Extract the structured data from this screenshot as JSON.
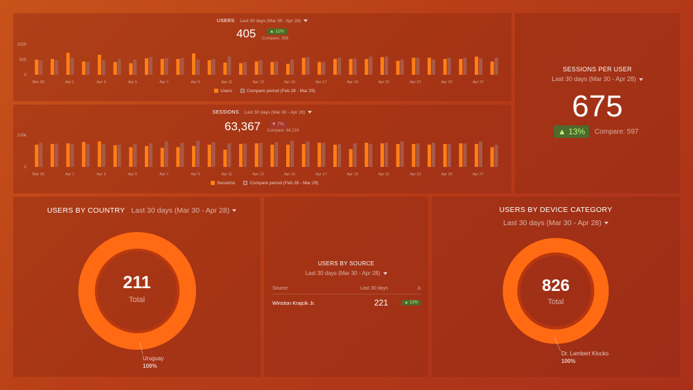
{
  "colors": {
    "primary": "#ff7f16",
    "compare": "#a75a48",
    "positive": "#b7f57a",
    "negative": "#ff9c8c",
    "donut": "#ff6a12"
  },
  "users_panel": {
    "title": "USERS",
    "range": "Last 30 days (Mar 30 - Apr 28)",
    "value": "405",
    "delta": "▲ 11%",
    "compare": "Compare: 366",
    "legend_primary": "Users",
    "legend_compare": "Compare period (Feb 28 - Mar 29)"
  },
  "sessions_panel": {
    "title": "SESSIONS",
    "range": "Last 30 days (Mar 30 - Apr 28)",
    "value": "63,367",
    "delta": "▼ 7%",
    "compare": "Compare: 68,219",
    "legend_primary": "Sessions",
    "legend_compare": "Compare period (Feb 28 - Mar 29)"
  },
  "sessions_per_user": {
    "title": "SESSIONS PER USER",
    "range": "Last 30 days (Mar 30 - Apr 28)",
    "value": "675",
    "delta": "▲ 13%",
    "compare": "Compare: 597"
  },
  "users_by_country": {
    "title": "USERS BY COUNTRY",
    "range": "Last 30 days (Mar 30 - Apr 28)",
    "total": "211",
    "total_label": "Total",
    "segment": "Uruguay",
    "segment_pct": "100%"
  },
  "users_by_source": {
    "title": "USERS BY SOURCE",
    "range": "Last 30 days (Mar 30 - Apr 28)",
    "col_source": "Source",
    "col_last": "Last 30 days",
    "col_delta": "Δ",
    "rows": [
      {
        "source": "Winston Krajcik Jr.",
        "value": "221",
        "delta": "▲ 12%"
      }
    ]
  },
  "users_by_device": {
    "title": "USERS BY DEVICE CATEGORY",
    "range": "Last 30 days (Mar 30 - Apr 28)",
    "total": "826",
    "total_label": "Total",
    "segment": "Dr. Lambert Klocko",
    "segment_pct": "100%"
  },
  "chart_data": [
    {
      "type": "bar",
      "name": "users-chart",
      "x_tick_labels": [
        "Mar 30",
        "Apr 1",
        "Apr 3",
        "Apr 5",
        "Apr 7",
        "Apr 9",
        "Apr 11",
        "Apr 13",
        "Apr 15",
        "Apr 17",
        "Apr 19",
        "Apr 21",
        "Apr 23",
        "Apr 25",
        "Apr 27"
      ],
      "y_ticks": [
        "1000",
        "500",
        "0"
      ],
      "ylim": [
        0,
        1000
      ],
      "series": [
        {
          "name": "Users",
          "values": [
            500,
            520,
            720,
            440,
            660,
            420,
            380,
            540,
            520,
            520,
            700,
            480,
            400,
            380,
            440,
            420,
            360,
            560,
            420,
            520,
            520,
            520,
            580,
            460,
            560,
            560,
            520,
            520,
            600,
            440
          ]
        },
        {
          "name": "Compare period (Feb 28 - Mar 29)",
          "values": [
            470,
            480,
            560,
            420,
            480,
            520,
            500,
            580,
            560,
            560,
            500,
            520,
            600,
            420,
            480,
            440,
            500,
            580,
            420,
            560,
            540,
            600,
            600,
            500,
            560,
            500,
            560,
            560,
            540,
            560
          ]
        }
      ]
    },
    {
      "type": "bar",
      "name": "sessions-chart",
      "x_tick_labels": [
        "Mar 30",
        "Apr 1",
        "Apr 3",
        "Apr 5",
        "Apr 7",
        "Apr 9",
        "Apr 11",
        "Apr 13",
        "Apr 15",
        "Apr 17",
        "Apr 19",
        "Apr 21",
        "Apr 23",
        "Apr 25",
        "Apr 27"
      ],
      "y_ticks": [
        "100k",
        "0"
      ],
      "ylim": [
        0,
        100000
      ],
      "series": [
        {
          "name": "Sessions",
          "values": [
            70000,
            72000,
            74000,
            78000,
            80000,
            68000,
            62000,
            66000,
            60000,
            62000,
            66000,
            70000,
            54000,
            72000,
            74000,
            70000,
            70000,
            72000,
            76000,
            70000,
            56000,
            76000,
            74000,
            72000,
            72000,
            70000,
            72000,
            74000,
            72000,
            62000
          ]
        },
        {
          "name": "Compare period (Feb 28 - Mar 29)",
          "values": [
            76000,
            74000,
            72000,
            72000,
            72000,
            70000,
            72000,
            74000,
            80000,
            76000,
            82000,
            78000,
            74000,
            74000,
            76000,
            78000,
            82000,
            80000,
            76000,
            72000,
            74000,
            72000,
            76000,
            80000,
            74000,
            76000,
            72000,
            74000,
            80000,
            70000
          ]
        }
      ]
    }
  ]
}
